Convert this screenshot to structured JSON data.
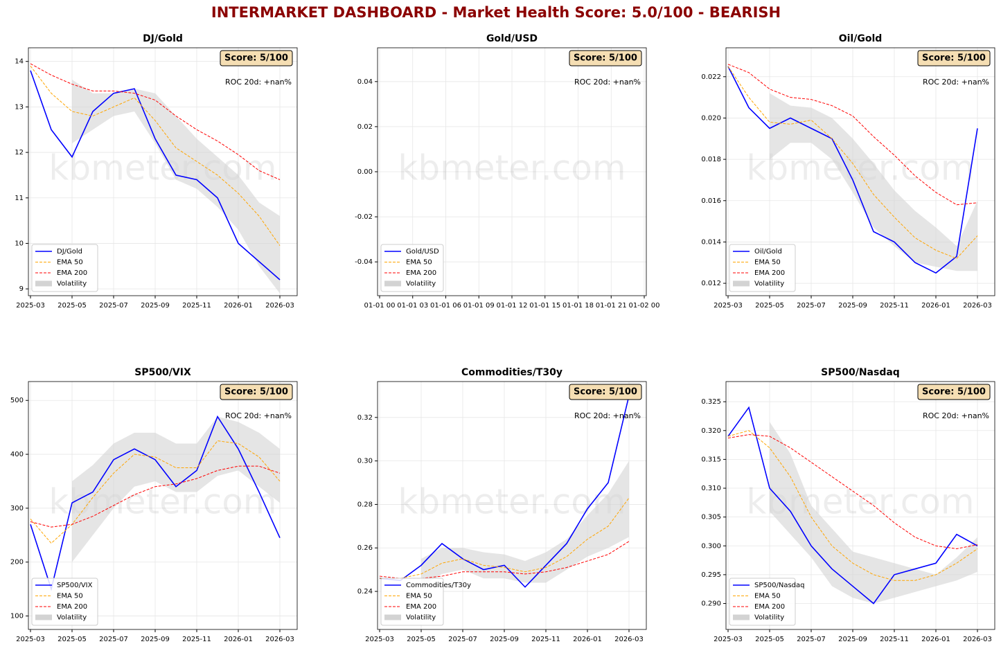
{
  "title": "INTERMARKET DASHBOARD - Market Health Score: 5.0/100 - BEARISH",
  "chart_data": [
    {
      "type": "line",
      "title": "DJ/Gold",
      "score": "Score: 5/100",
      "roc": "ROC 20d: +nan%",
      "watermark": "kbmeter.com",
      "legend": "lower left",
      "grid": true,
      "x": [
        "2025-03",
        "2025-04",
        "2025-05",
        "2025-06",
        "2025-07",
        "2025-08",
        "2025-09",
        "2025-10",
        "2025-11",
        "2025-12",
        "2026-01",
        "2026-02",
        "2026-03"
      ],
      "xticks": [
        "2025-03",
        "2025-05",
        "2025-07",
        "2025-09",
        "2025-11",
        "2026-01",
        "2026-03"
      ],
      "ylim": [
        8.85,
        14.3
      ],
      "yticks": [
        9,
        10,
        11,
        12,
        13,
        14
      ],
      "series": [
        {
          "name": "DJ/Gold",
          "color": "#0000ff",
          "values": [
            13.8,
            12.5,
            11.9,
            12.9,
            13.3,
            13.4,
            12.3,
            11.5,
            11.4,
            11.0,
            10.0,
            9.6,
            9.2
          ]
        },
        {
          "name": "EMA 50",
          "color": "#ffa500",
          "values": [
            13.9,
            13.3,
            12.9,
            12.8,
            13.0,
            13.2,
            12.7,
            12.1,
            11.8,
            11.5,
            11.1,
            10.6,
            9.95
          ]
        },
        {
          "name": "EMA 200",
          "color": "#ff0000",
          "values": [
            13.95,
            13.7,
            13.5,
            13.35,
            13.35,
            13.3,
            13.15,
            12.8,
            12.5,
            12.25,
            11.95,
            11.6,
            11.4
          ]
        }
      ],
      "band": {
        "name": "Volatility",
        "color": "#d3d3d3",
        "lower": [
          null,
          null,
          12.2,
          12.5,
          12.8,
          12.9,
          12.2,
          11.4,
          11.2,
          10.8,
          10.3,
          9.5,
          8.9
        ],
        "upper": [
          null,
          null,
          13.6,
          13.3,
          13.3,
          13.4,
          13.3,
          12.8,
          12.3,
          11.9,
          11.5,
          10.9,
          10.6
        ]
      }
    },
    {
      "type": "line",
      "title": "Gold/USD",
      "score": "Score: 5/100",
      "roc": "ROC 20d: +nan%",
      "watermark": "kbmeter.com",
      "legend": "lower left",
      "grid": true,
      "x": [],
      "xticks": [
        "01-01 00",
        "01-01 03",
        "01-01 06",
        "01-01 09",
        "01-01 12",
        "01-01 15",
        "01-01 18",
        "01-01 21",
        "01-02 00"
      ],
      "ylim": [
        -0.055,
        0.055
      ],
      "yticks": [
        -0.04,
        -0.02,
        {
          "value": 0,
          "label": "0.00"
        },
        0.02,
        0.04
      ],
      "series": [
        {
          "name": "Gold/USD",
          "color": "#0000ff",
          "values": []
        },
        {
          "name": "EMA 50",
          "color": "#ffa500",
          "values": []
        },
        {
          "name": "EMA 200",
          "color": "#ff0000",
          "values": []
        }
      ],
      "band": {
        "name": "Volatility",
        "color": "#d3d3d3",
        "lower": [],
        "upper": []
      }
    },
    {
      "type": "line",
      "title": "Oil/Gold",
      "score": "Score: 5/100",
      "roc": "ROC 20d: +nan%",
      "watermark": "kbmeter.com",
      "legend": "lower left",
      "grid": true,
      "x": [
        "2025-03",
        "2025-04",
        "2025-05",
        "2025-06",
        "2025-07",
        "2025-08",
        "2025-09",
        "2025-10",
        "2025-11",
        "2025-12",
        "2026-01",
        "2026-02",
        "2026-03"
      ],
      "xticks": [
        "2025-03",
        "2025-05",
        "2025-07",
        "2025-09",
        "2025-11",
        "2026-01",
        "2026-03"
      ],
      "ylim": [
        0.0114,
        0.0234
      ],
      "yticks": [
        0.012,
        0.014,
        0.016,
        0.018,
        {
          "value": 0.02,
          "label": "0.020"
        },
        0.022
      ],
      "series": [
        {
          "name": "Oil/Gold",
          "color": "#0000ff",
          "values": [
            0.0225,
            0.0205,
            0.0195,
            0.02,
            0.0195,
            0.019,
            0.017,
            0.0145,
            0.014,
            0.013,
            0.0125,
            0.0133,
            0.0195
          ]
        },
        {
          "name": "EMA 50",
          "color": "#ffa500",
          "values": [
            0.0225,
            0.021,
            0.0198,
            0.0197,
            0.0199,
            0.019,
            0.0178,
            0.0163,
            0.0152,
            0.0142,
            0.0136,
            0.0132,
            0.0143
          ]
        },
        {
          "name": "EMA 200",
          "color": "#ff0000",
          "values": [
            0.0226,
            0.0222,
            0.0214,
            0.021,
            0.0209,
            0.0206,
            0.0201,
            0.0191,
            0.0182,
            0.0172,
            0.0164,
            0.0158,
            0.0159
          ]
        }
      ],
      "band": {
        "name": "Volatility",
        "color": "#d3d3d3",
        "lower": [
          null,
          null,
          0.018,
          0.0188,
          0.0188,
          0.018,
          0.0164,
          0.0147,
          0.0138,
          0.013,
          0.0128,
          0.0126,
          0.0126
        ],
        "upper": [
          null,
          null,
          0.0212,
          0.0206,
          0.0205,
          0.02,
          0.019,
          0.0178,
          0.0165,
          0.0155,
          0.0147,
          0.0138,
          0.016
        ]
      }
    },
    {
      "type": "line",
      "title": "SP500/VIX",
      "score": "Score: 5/100",
      "roc": "ROC 20d: +nan%",
      "watermark": "kbmeter.com",
      "legend": "lower left",
      "grid": true,
      "x": [
        "2025-03",
        "2025-04",
        "2025-05",
        "2025-06",
        "2025-07",
        "2025-08",
        "2025-09",
        "2025-10",
        "2025-11",
        "2025-12",
        "2026-01",
        "2026-02",
        "2026-03"
      ],
      "xticks": [
        "2025-03",
        "2025-05",
        "2025-07",
        "2025-09",
        "2025-11",
        "2026-01",
        "2026-03"
      ],
      "ylim": [
        75,
        535
      ],
      "yticks": [
        100,
        200,
        300,
        400,
        500
      ],
      "series": [
        {
          "name": "SP500/VIX",
          "color": "#0000ff",
          "values": [
            270,
            150,
            310,
            330,
            390,
            410,
            390,
            340,
            370,
            470,
            410,
            330,
            245
          ]
        },
        {
          "name": "EMA 50",
          "color": "#ffa500",
          "values": [
            280,
            235,
            270,
            320,
            365,
            400,
            395,
            375,
            375,
            425,
            420,
            395,
            350
          ]
        },
        {
          "name": "EMA 200",
          "color": "#ff0000",
          "values": [
            275,
            265,
            270,
            285,
            305,
            325,
            340,
            345,
            355,
            370,
            378,
            378,
            365
          ]
        }
      ],
      "band": {
        "name": "Volatility",
        "color": "#d3d3d3",
        "lower": [
          null,
          null,
          200,
          250,
          300,
          340,
          350,
          330,
          330,
          360,
          370,
          340,
          310
        ],
        "upper": [
          null,
          null,
          350,
          380,
          420,
          440,
          440,
          420,
          420,
          470,
          460,
          440,
          410
        ]
      }
    },
    {
      "type": "line",
      "title": "Commodities/T30y",
      "score": "Score: 5/100",
      "roc": "ROC 20d: +nan%",
      "watermark": "kbmeter.com",
      "legend": "lower left",
      "grid": true,
      "x": [
        "2025-03",
        "2025-04",
        "2025-05",
        "2025-06",
        "2025-07",
        "2025-08",
        "2025-09",
        "2025-10",
        "2025-11",
        "2025-12",
        "2026-01",
        "2026-02",
        "2026-03"
      ],
      "xticks": [
        "2025-03",
        "2025-05",
        "2025-07",
        "2025-09",
        "2025-11",
        "2026-01",
        "2026-03"
      ],
      "ylim": [
        0.2225,
        0.3365
      ],
      "yticks": [
        0.24,
        0.26,
        0.28,
        {
          "value": 0.3,
          "label": "0.30"
        },
        0.32
      ],
      "series": [
        {
          "name": "Commodities/T30y",
          "color": "#0000ff",
          "values": [
            0.246,
            0.245,
            0.252,
            0.262,
            0.255,
            0.25,
            0.252,
            0.242,
            0.252,
            0.262,
            0.278,
            0.29,
            0.33
          ]
        },
        {
          "name": "EMA 50",
          "color": "#ffa500",
          "values": [
            0.246,
            0.246,
            0.248,
            0.253,
            0.255,
            0.252,
            0.251,
            0.249,
            0.251,
            0.256,
            0.264,
            0.27,
            0.283
          ]
        },
        {
          "name": "EMA 200",
          "color": "#ff0000",
          "values": [
            0.247,
            0.246,
            0.246,
            0.247,
            0.249,
            0.249,
            0.249,
            0.248,
            0.249,
            0.251,
            0.254,
            0.257,
            0.263
          ]
        }
      ],
      "band": {
        "name": "Volatility",
        "color": "#d3d3d3",
        "lower": [
          null,
          null,
          0.242,
          0.248,
          0.25,
          0.246,
          0.246,
          0.244,
          0.244,
          0.25,
          0.256,
          0.26,
          0.265
        ],
        "upper": [
          null,
          null,
          0.255,
          0.26,
          0.26,
          0.258,
          0.257,
          0.254,
          0.258,
          0.264,
          0.275,
          0.285,
          0.3
        ]
      }
    },
    {
      "type": "line",
      "title": "SP500/Nasdaq",
      "score": "Score: 5/100",
      "roc": "ROC 20d: +nan%",
      "watermark": "kbmeter.com",
      "legend": "lower left",
      "grid": true,
      "x": [
        "2025-03",
        "2025-04",
        "2025-05",
        "2025-06",
        "2025-07",
        "2025-08",
        "2025-09",
        "2025-10",
        "2025-11",
        "2025-12",
        "2026-01",
        "2026-02",
        "2026-03"
      ],
      "xticks": [
        "2025-03",
        "2025-05",
        "2025-07",
        "2025-09",
        "2025-11",
        "2026-01",
        "2026-03"
      ],
      "ylim": [
        0.2855,
        0.3285
      ],
      "yticks": [
        {
          "value": 0.29,
          "label": "0.290"
        },
        0.295,
        {
          "value": 0.3,
          "label": "0.300"
        },
        0.305,
        {
          "value": 0.31,
          "label": "0.310"
        },
        0.315,
        {
          "value": 0.32,
          "label": "0.320"
        },
        0.325
      ],
      "series": [
        {
          "name": "SP500/Nasdaq",
          "color": "#0000ff",
          "values": [
            0.319,
            0.324,
            0.31,
            0.306,
            0.3,
            0.296,
            0.293,
            0.29,
            0.295,
            0.296,
            0.297,
            0.302,
            0.3
          ]
        },
        {
          "name": "EMA 50",
          "color": "#ffa500",
          "values": [
            0.319,
            0.32,
            0.317,
            0.312,
            0.305,
            0.3,
            0.297,
            0.295,
            0.294,
            0.294,
            0.295,
            0.297,
            0.2995
          ]
        },
        {
          "name": "EMA 200",
          "color": "#ff0000",
          "values": [
            0.3187,
            0.3193,
            0.319,
            0.317,
            0.3145,
            0.312,
            0.3095,
            0.307,
            0.304,
            0.3015,
            0.3,
            0.2995,
            0.3002
          ]
        }
      ],
      "band": {
        "name": "Volatility",
        "color": "#d3d3d3",
        "lower": [
          null,
          null,
          0.306,
          0.302,
          0.298,
          0.293,
          0.291,
          0.29,
          0.291,
          0.292,
          0.293,
          0.294,
          0.2955
        ],
        "upper": [
          null,
          null,
          0.3215,
          0.316,
          0.307,
          0.303,
          0.299,
          0.298,
          0.297,
          0.296,
          0.295,
          0.298,
          0.3015
        ]
      }
    }
  ]
}
